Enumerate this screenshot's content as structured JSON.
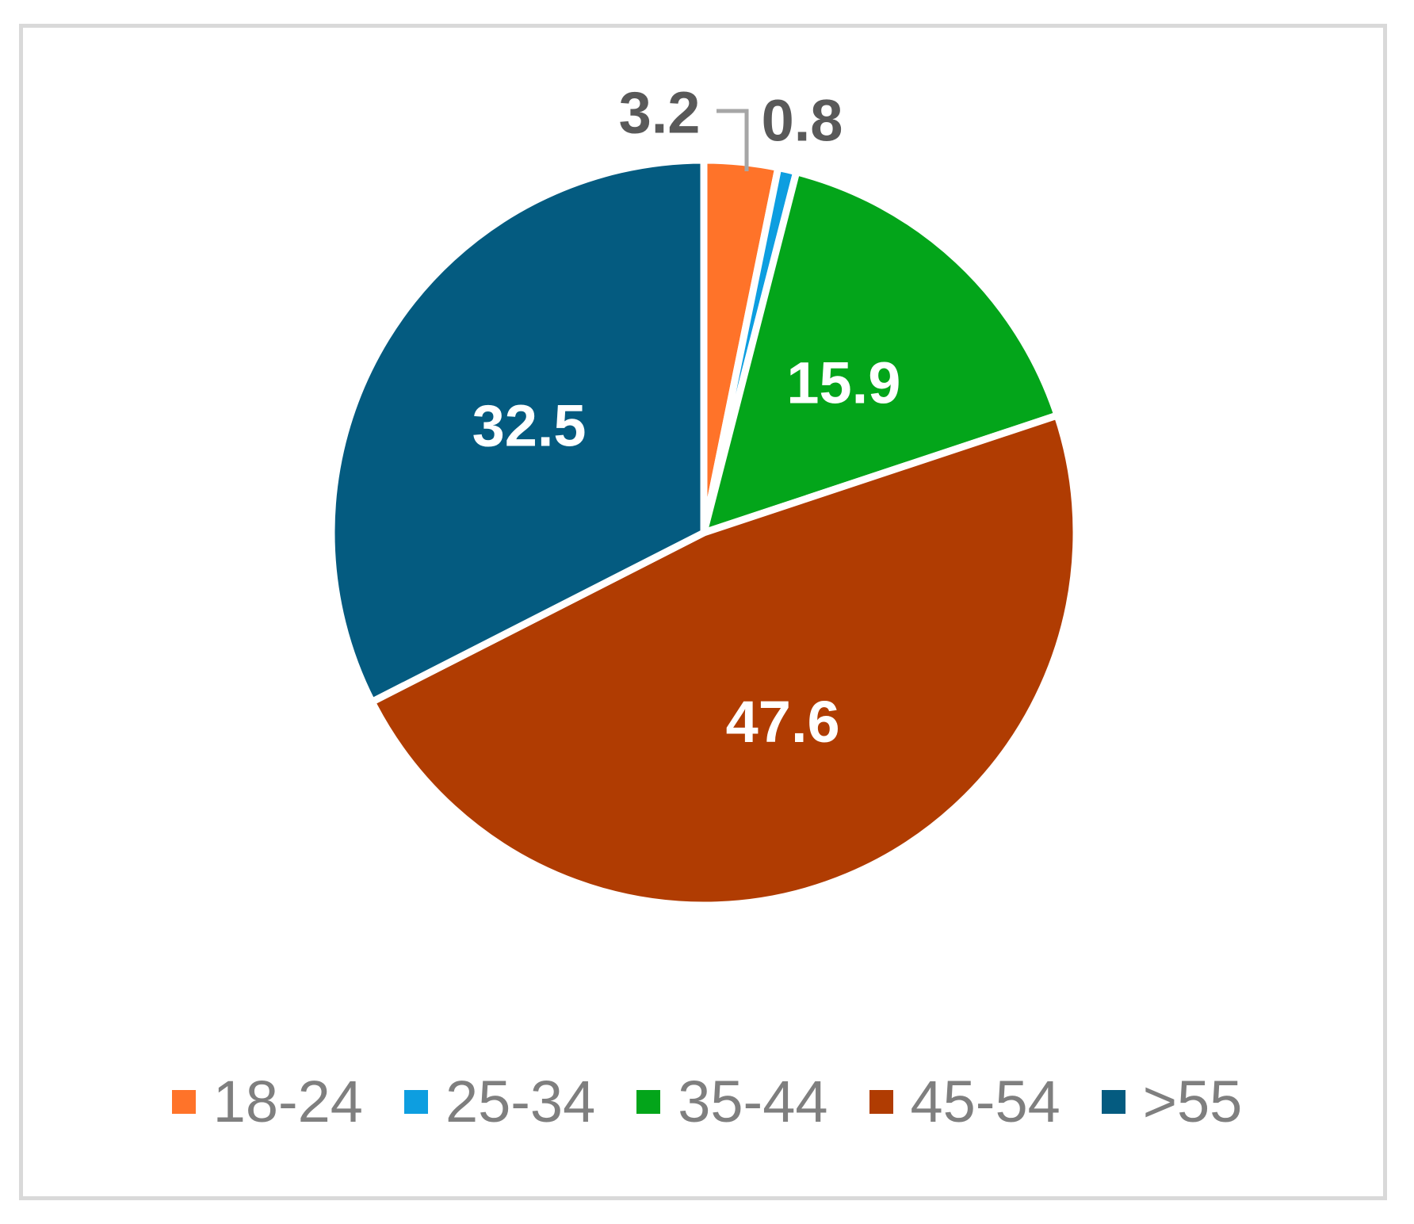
{
  "chart_data": {
    "type": "pie",
    "categories": [
      "18-24",
      "25-34",
      "35-44",
      "45-54",
      ">55"
    ],
    "values": [
      3.2,
      0.8,
      15.9,
      47.6,
      32.5
    ],
    "data_labels": [
      "3.2",
      "0.8",
      "15.9",
      "47.6",
      "32.5"
    ],
    "colors": [
      "#ff7329",
      "#0d9ee0",
      "#03a51a",
      "#b03c02",
      "#045b80"
    ],
    "label_colors": [
      "#595959",
      "#595959",
      "#ffffff",
      "#ffffff",
      "#ffffff"
    ],
    "label_position": [
      "outside",
      "outside",
      "inside",
      "inside",
      "inside"
    ],
    "leader_line_color": "#a6a6a6",
    "slice_border_color": "#ffffff",
    "legend_placement": "bottom",
    "title": ""
  }
}
